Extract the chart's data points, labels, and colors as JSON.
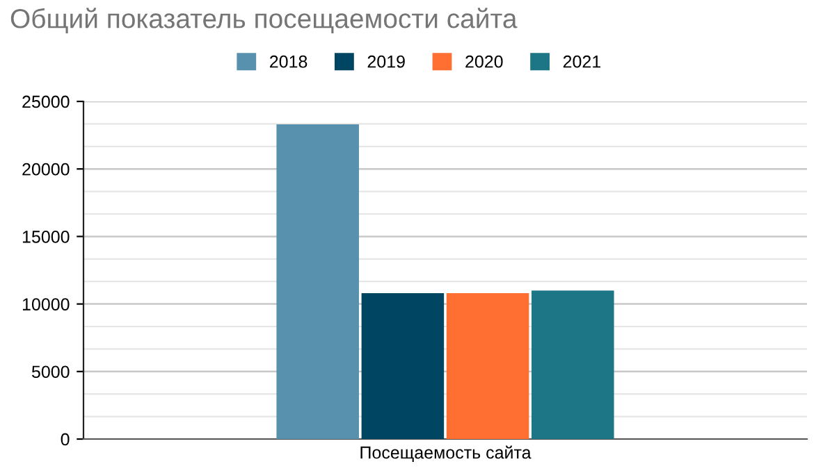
{
  "chart_data": {
    "type": "bar",
    "title": "Общий показатель посещаемости сайта",
    "categories": [
      "Посещаемость сайта"
    ],
    "series": [
      {
        "name": "2018",
        "color": "#5891ad",
        "values": [
          23300
        ]
      },
      {
        "name": "2019",
        "color": "#004561",
        "values": [
          10800
        ]
      },
      {
        "name": "2020",
        "color": "#ff6f31",
        "values": [
          10800
        ]
      },
      {
        "name": "2021",
        "color": "#1c7685",
        "values": [
          11000
        ]
      }
    ],
    "ylim": [
      0,
      25000
    ],
    "yticks": [
      0,
      5000,
      10000,
      15000,
      20000,
      25000
    ],
    "grid": "y",
    "legend": "top"
  }
}
